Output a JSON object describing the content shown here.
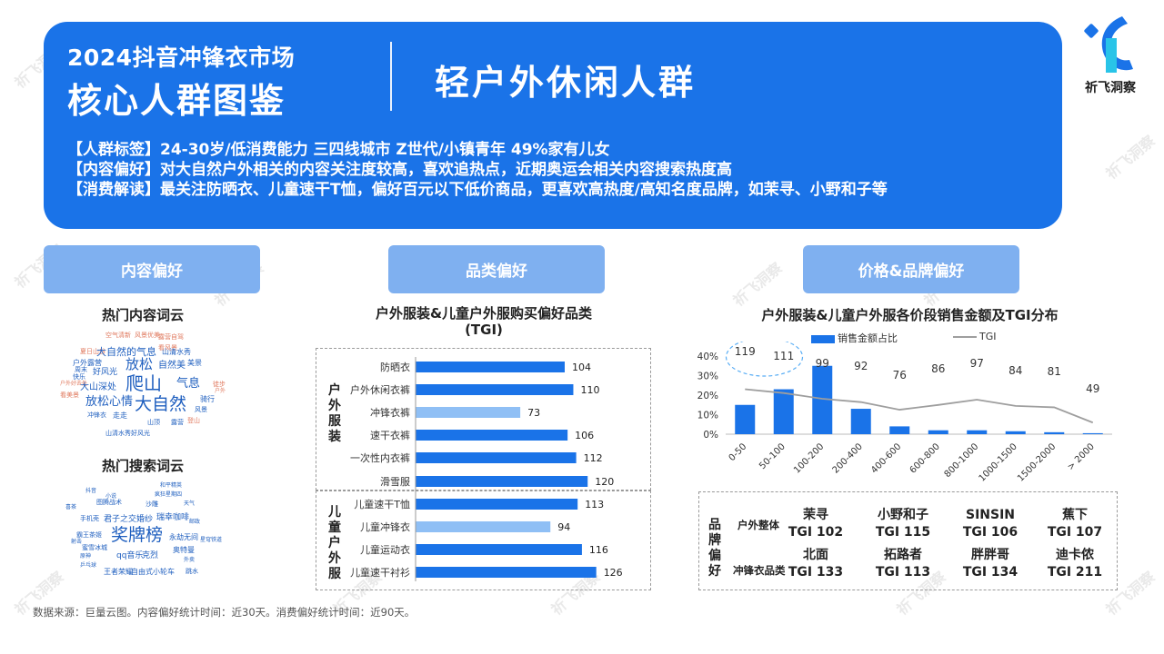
{
  "header": {
    "title_line1": "2024抖音冲锋衣市场",
    "title_line2": "核心人群图鉴",
    "segment": "轻户外休闲人群",
    "tags": [
      "【人群标签】24-30岁/低消费能力    三四线城市    Z世代/小镇青年    49%家有儿女",
      "【内容偏好】对大自然户外相关的内容关注度较高，喜欢追热点，近期奥运会相关内容搜索热度高",
      "【消费解读】最关注防晒衣、儿童速干T恤，偏好百元以下低价商品，更喜欢高热度/高知名度品牌，如茉寻、小野和子等"
    ]
  },
  "logo": {
    "text": "祈飞洞察",
    "icon": "brand-logo-icon",
    "colors": [
      "#1a73e8",
      "#29c4e8"
    ]
  },
  "watermark_text": "祈飞洞察",
  "sections": {
    "content": "内容偏好",
    "category": "品类偏好",
    "price": "价格&品牌偏好"
  },
  "content_pref": {
    "cloud1_title": "热门内容词云",
    "cloud1_words": [
      {
        "t": "空气清新",
        "c": "#e07a5f"
      },
      {
        "t": "风景优美",
        "c": "#e07a5f"
      },
      {
        "t": "露营自驾",
        "c": "#e07a5f"
      },
      {
        "t": "夏日山谷",
        "c": "#e07a5f"
      },
      {
        "t": "看风景",
        "c": "#e07a5f"
      },
      {
        "t": "山清水秀",
        "c": "#1f5fbf"
      },
      {
        "t": "大自然的气息",
        "c": "#1f5fbf"
      },
      {
        "t": "户外露营",
        "c": "#1f5fbf"
      },
      {
        "t": "周末",
        "c": "#1f5fbf"
      },
      {
        "t": "快乐",
        "c": "#1f5fbf"
      },
      {
        "t": "放松",
        "c": "#1f5fbf"
      },
      {
        "t": "自然美",
        "c": "#1f5fbf"
      },
      {
        "t": "美景",
        "c": "#1f5fbf"
      },
      {
        "t": "好风光",
        "c": "#1f5fbf"
      },
      {
        "t": "户外好去处",
        "c": "#e07a5f"
      },
      {
        "t": "爬山",
        "c": "#1f5fbf"
      },
      {
        "t": "气息",
        "c": "#1f5fbf"
      },
      {
        "t": "徒步",
        "c": "#e07a5f"
      },
      {
        "t": "户外",
        "c": "#e07a5f"
      },
      {
        "t": "大山深处",
        "c": "#1f5fbf"
      },
      {
        "t": "看美景",
        "c": "#e07a5f"
      },
      {
        "t": "放松心情",
        "c": "#1f5fbf"
      },
      {
        "t": "大自然",
        "c": "#1f5fbf"
      },
      {
        "t": "骑行",
        "c": "#1f5fbf"
      },
      {
        "t": "风景",
        "c": "#1f5fbf"
      },
      {
        "t": "冲锋衣",
        "c": "#1f5fbf"
      },
      {
        "t": "走走",
        "c": "#1f5fbf"
      },
      {
        "t": "山顶",
        "c": "#1f5fbf"
      },
      {
        "t": "露营",
        "c": "#1f5fbf"
      },
      {
        "t": "登山",
        "c": "#e07a5f"
      },
      {
        "t": "山清水秀好风光",
        "c": "#1f5fbf"
      }
    ],
    "cloud2_title": "热门搜索词云",
    "cloud2_words": [
      {
        "t": "奖牌榜",
        "c": "#1f5fbf"
      },
      {
        "t": "君子之交婚纱",
        "c": "#1f5fbf"
      },
      {
        "t": "瑞幸咖啡",
        "c": "#1f5fbf"
      },
      {
        "t": "永劫无间",
        "c": "#1f5fbf"
      },
      {
        "t": "霸王茶姬",
        "c": "#1f5fbf"
      },
      {
        "t": "蜜雪冰城",
        "c": "#1f5fbf"
      },
      {
        "t": "qq音乐",
        "c": "#1f5fbf"
      },
      {
        "t": "克烈",
        "c": "#1f5fbf"
      },
      {
        "t": "奥特曼",
        "c": "#1f5fbf"
      },
      {
        "t": "王者荣耀",
        "c": "#1f5fbf"
      },
      {
        "t": "自由式小轮车",
        "c": "#1f5fbf"
      },
      {
        "t": "跳水",
        "c": "#1f5fbf"
      },
      {
        "t": "乒乓球",
        "c": "#1f5fbf"
      },
      {
        "t": "原神",
        "c": "#1f5fbf"
      },
      {
        "t": "图腾战术",
        "c": "#1f5fbf"
      },
      {
        "t": "沙雕",
        "c": "#1f5fbf"
      },
      {
        "t": "手机壳",
        "c": "#1f5fbf"
      },
      {
        "t": "疯狂星期四",
        "c": "#1f5fbf"
      },
      {
        "t": "和平精英",
        "c": "#1f5fbf"
      },
      {
        "t": "抖音",
        "c": "#1f5fbf"
      },
      {
        "t": "天气",
        "c": "#1f5fbf"
      },
      {
        "t": "邮政",
        "c": "#1f5fbf"
      },
      {
        "t": "喜茶",
        "c": "#1f5fbf"
      },
      {
        "t": "小说",
        "c": "#1f5fbf"
      },
      {
        "t": "星穹铁道",
        "c": "#1f5fbf"
      },
      {
        "t": "射击",
        "c": "#1f5fbf"
      },
      {
        "t": "外卖",
        "c": "#1f5fbf"
      }
    ]
  },
  "category_pref": {
    "chart_title": "户外服装&儿童户外服购买偏好品类",
    "chart_subtitle": "(TGI)",
    "groups": [
      "户外服装",
      "儿童户外服"
    ]
  },
  "price_pref": {
    "chart_title": "户外服装&儿童户外服各价段销售金额及TGI分布",
    "legend_bar": "销售金额占比",
    "legend_line": "TGI"
  },
  "brand_pref": {
    "side_label": "品牌偏好",
    "rows": [
      {
        "label": "户外整体",
        "brands": [
          {
            "name": "茉寻",
            "tgi": "TGI 102"
          },
          {
            "name": "小野和子",
            "tgi": "TGI 115"
          },
          {
            "name": "SINSIN",
            "tgi": "TGI 106"
          },
          {
            "name": "蕉下",
            "tgi": "TGI 107"
          }
        ]
      },
      {
        "label": "冲锋衣品类",
        "brands": [
          {
            "name": "北面",
            "tgi": "TGI 133"
          },
          {
            "name": "拓路者",
            "tgi": "TGI 113"
          },
          {
            "name": "胖胖哥",
            "tgi": "TGI 134"
          },
          {
            "name": "迪卡侬",
            "tgi": "TGI 211"
          }
        ]
      }
    ]
  },
  "source": "数据来源：巨量云图。内容偏好统计时间：近30天。消费偏好统计时间：近90天。",
  "chart_data": [
    {
      "type": "bar",
      "orientation": "horizontal",
      "title": "户外服装&儿童户外服购买偏好品类",
      "subtitle": "(TGI)",
      "categories": [
        "防晒衣",
        "户外休闲衣裤",
        "冲锋衣裤",
        "速干衣裤",
        "一次性内衣裤",
        "滑雪服",
        "儿童速干T恤",
        "儿童冲锋衣",
        "儿童运动衣",
        "儿童速干衬衫"
      ],
      "group": [
        "户外服装",
        "户外服装",
        "户外服装",
        "户外服装",
        "户外服装",
        "户外服装",
        "儿童户外服",
        "儿童户外服",
        "儿童户外服",
        "儿童户外服"
      ],
      "values": [
        104,
        110,
        73,
        106,
        112,
        120,
        113,
        94,
        116,
        126
      ],
      "highlight": [
        false,
        false,
        true,
        false,
        false,
        false,
        false,
        true,
        false,
        false
      ],
      "colors": {
        "bar": "#1a73e8",
        "highlight": "#8fbff5"
      },
      "xlim": [
        0,
        130
      ]
    },
    {
      "type": "bar",
      "title": "户外服装&儿童户外服各价段销售金额及TGI分布",
      "categories": [
        "0-50",
        "50-100",
        "100-200",
        "200-400",
        "400-600",
        "600-800",
        "800-1000",
        "1000-1500",
        "1500-2000",
        "> 2000"
      ],
      "series": [
        {
          "name": "销售金额占比",
          "type": "bar",
          "values": [
            15,
            23,
            35,
            13,
            4,
            2,
            2,
            1.5,
            1,
            0.5
          ]
        },
        {
          "name": "TGI",
          "type": "line",
          "values": [
            119,
            111,
            99,
            92,
            76,
            86,
            97,
            84,
            81,
            49
          ]
        }
      ],
      "ylim": [
        0,
        40
      ],
      "yticks": [
        "0%",
        "10%",
        "20%",
        "30%",
        "40%"
      ],
      "colors": {
        "bar": "#1a73e8",
        "line": "#9e9e9e",
        "highlight_ring": "#5aaef5"
      }
    }
  ]
}
